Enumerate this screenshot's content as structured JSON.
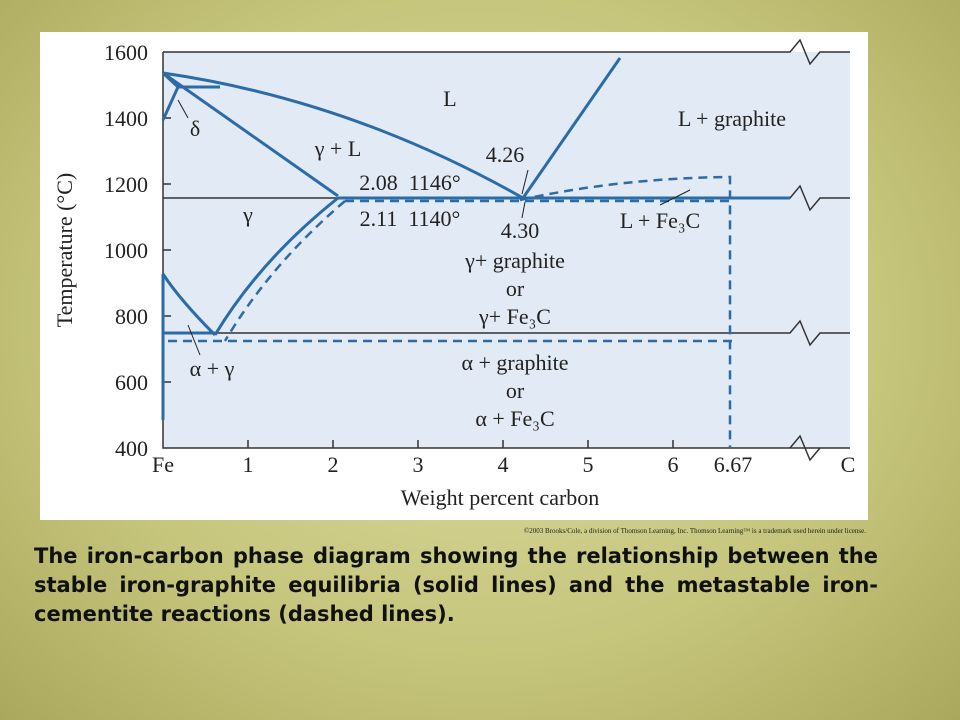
{
  "diagram": {
    "y_axis": {
      "label": "Temperature (°C)",
      "ticks": [
        "1600",
        "1400",
        "1200",
        "1000",
        "800",
        "600",
        "400"
      ]
    },
    "x_axis": {
      "label": "Weight percent carbon",
      "ticks": [
        "Fe",
        "1",
        "2",
        "3",
        "4",
        "5",
        "6",
        "6.67",
        "C"
      ]
    },
    "regions": [
      "L",
      "L + graphite",
      "γ + L",
      "δ",
      "γ",
      "L + Fe₃C",
      "γ+ graphite",
      "or",
      "γ+ Fe₃C",
      "α + γ",
      "α + graphite",
      "or",
      "α + Fe₃C"
    ],
    "annotations": [
      "4.26",
      "2.08  1146°",
      "2.11  1140°",
      "4.30"
    ],
    "copyright": "©2003 Brooks/Cole, a division of Thomson Learning, Inc.  Thomson Learning™ is a trademark used herein under license."
  },
  "caption": "The iron-carbon phase diagram showing the relationship between the stable iron-graphite equilibria (solid lines) and the metastable iron-cementite reactions (dashed lines)."
}
